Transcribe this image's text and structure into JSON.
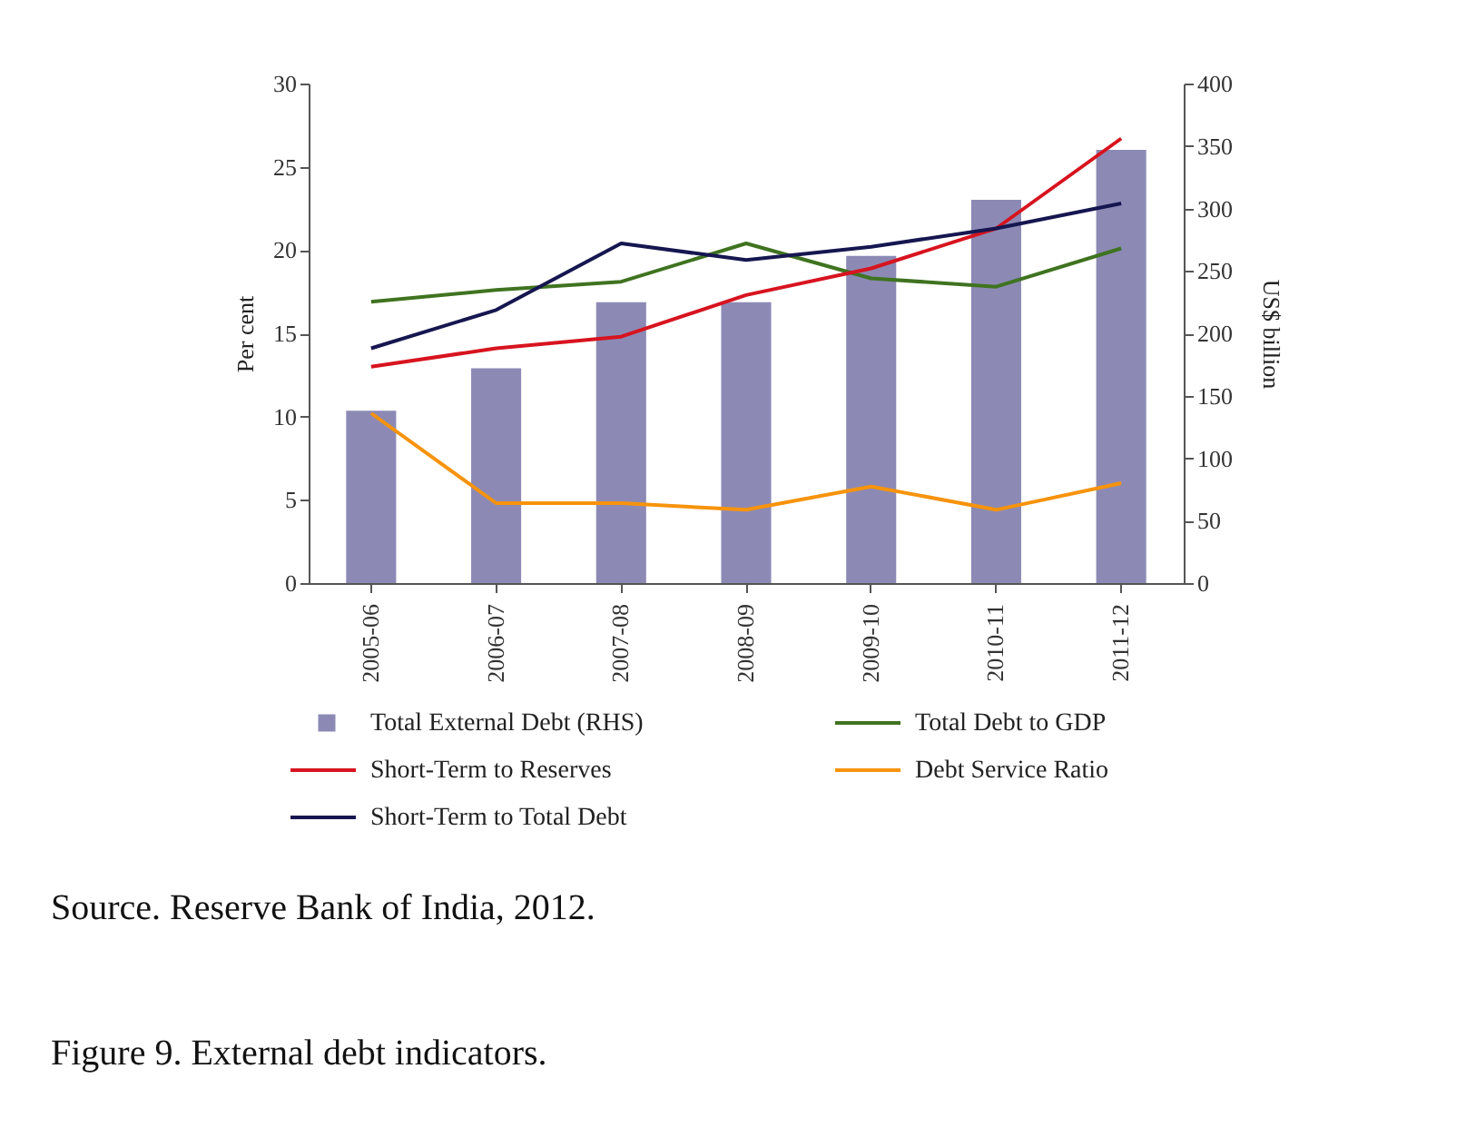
{
  "chart_data": {
    "type": "bar",
    "categories": [
      "2005-06",
      "2006-07",
      "2007-08",
      "2008-09",
      "2009-10",
      "2010-11",
      "2011-12"
    ],
    "ylabel": "Per cent",
    "y2label": "US$ billion",
    "ylim": [
      0,
      30
    ],
    "yticks": [
      0,
      5,
      10,
      15,
      20,
      25,
      30
    ],
    "y2lim": [
      0,
      400
    ],
    "y2ticks": [
      0,
      50,
      100,
      150,
      200,
      250,
      300,
      350,
      400
    ],
    "series": [
      {
        "name": "Total External Debt (RHS)",
        "axis": "y2",
        "color": "#8c8ab5",
        "values": [
          138,
          172,
          225,
          225,
          262,
          307,
          347
        ]
      },
      {
        "name": "Total Debt to GDP",
        "type": "line",
        "color": "#3f7320",
        "values": [
          16.9,
          17.6,
          18.1,
          20.4,
          18.3,
          17.8,
          20.1
        ]
      },
      {
        "name": "Short-Term to Reserves",
        "type": "line",
        "color": "#d7141f",
        "values": [
          13.0,
          14.1,
          14.8,
          17.3,
          18.9,
          21.3,
          26.7
        ]
      },
      {
        "name": "Debt Service Ratio",
        "type": "line",
        "color": "#f7930c",
        "values": [
          10.2,
          4.8,
          4.8,
          4.4,
          5.8,
          4.4,
          6.0
        ]
      },
      {
        "name": "Short-Term to Total Debt",
        "type": "line",
        "color": "#161650",
        "values": [
          14.1,
          16.4,
          20.4,
          19.4,
          20.2,
          21.3,
          22.8
        ]
      }
    ],
    "grid": false,
    "legend": "bottom",
    "annotations": [
      "Source. Reserve Bank of India, 2012.",
      "Figure 9. External debt indicators."
    ]
  }
}
